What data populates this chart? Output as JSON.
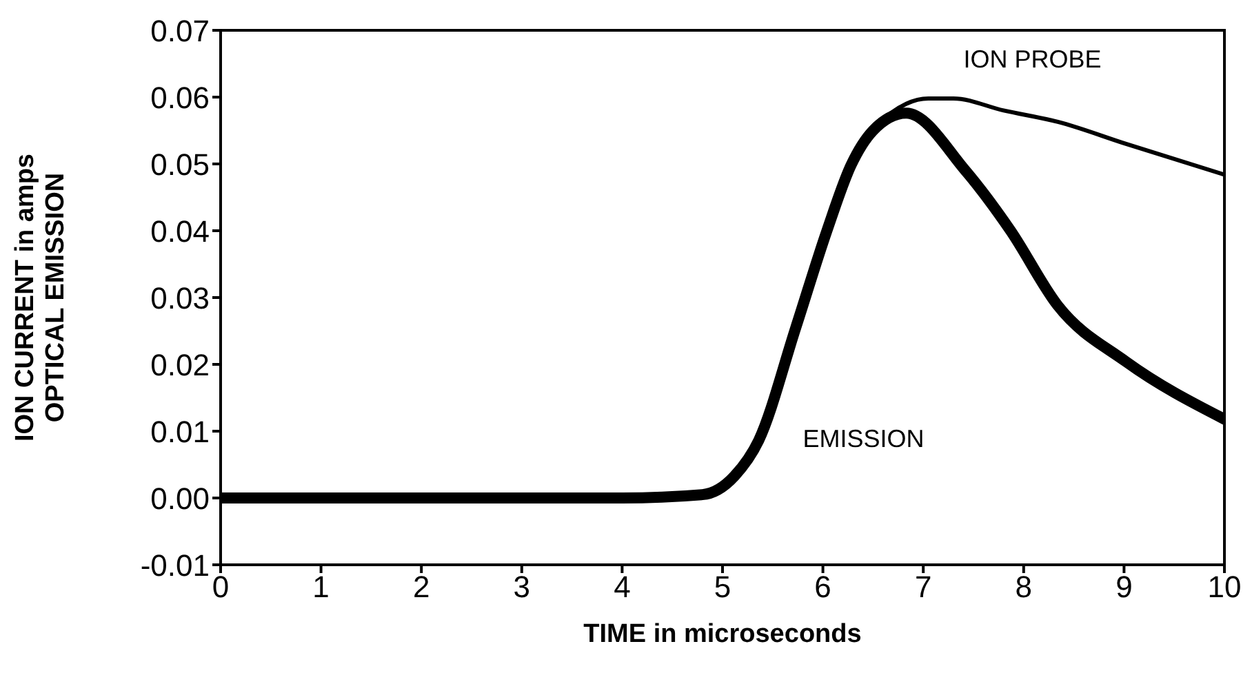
{
  "chart_data": {
    "type": "line",
    "xlabel": "TIME in microseconds",
    "ylabel": "ION CURRENT in amps\nOPTICAL EMISSION",
    "xlim": [
      0,
      10
    ],
    "ylim": [
      -0.01,
      0.07
    ],
    "xticks": [
      0,
      1,
      2,
      3,
      4,
      5,
      6,
      7,
      8,
      9,
      10
    ],
    "yticks": [
      -0.01,
      {
        "value": 0,
        "label": "0.00"
      },
      0.01,
      0.02,
      0.03,
      0.04,
      0.05,
      0.06,
      0.07
    ],
    "grid": false,
    "legend": false,
    "marker": "none",
    "line_style": "solid",
    "series": [
      {
        "name": "ION PROBE",
        "color": "#000000",
        "x": [
          0,
          1,
          2,
          3,
          4,
          4.8,
          5.12,
          5.36,
          5.73,
          6.04,
          6.28,
          6.5,
          6.83,
          7.05,
          7.3,
          7.8,
          8.34,
          9.02,
          10
        ],
        "values": [
          0,
          0,
          0,
          0,
          0,
          0.0005,
          0.0033,
          0.0086,
          0.0255,
          0.04,
          0.0498,
          0.055,
          0.059,
          0.0598,
          0.0598,
          0.058,
          0.0563,
          0.053,
          0.0484
        ]
      },
      {
        "name": "EMISSION",
        "color": "#000000",
        "x": [
          0,
          1,
          2,
          3,
          4,
          4.8,
          5.12,
          5.36,
          5.73,
          6.04,
          6.28,
          6.5,
          6.83,
          7.42,
          7.87,
          8.34,
          9.02,
          10
        ],
        "values": [
          0,
          0,
          0,
          0,
          0,
          0.0005,
          0.0033,
          0.0086,
          0.0255,
          0.04,
          0.0498,
          0.055,
          0.0576,
          0.049,
          0.04,
          0.0288,
          0.0204,
          0.0118
        ]
      }
    ]
  }
}
